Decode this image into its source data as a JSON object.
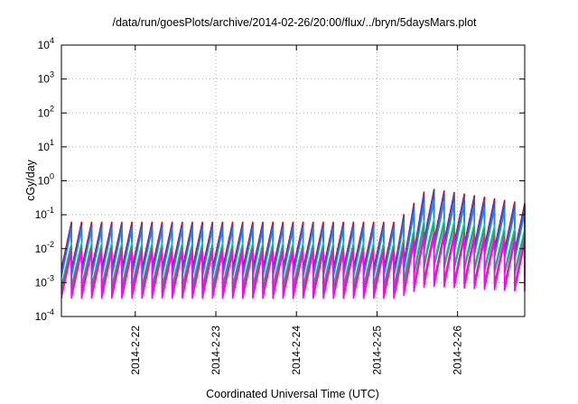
{
  "chart_data": {
    "type": "line",
    "title": "/data/run/goesPlots/archive/2014-02-26/20:00/flux/../bryn/5daysMars.plot",
    "xlabel": "Coordinated Universal Time (UTC)",
    "ylabel": "cGy/day",
    "yscale": "log",
    "ylim": [
      0.0001,
      10000
    ],
    "xlim": [
      "2014-02-21 02:00",
      "2014-02-26 20:00"
    ],
    "grid": true,
    "x_ticks": [
      {
        "label": "2014-2-22",
        "value": "2014-02-22 00:00"
      },
      {
        "label": "2014-2-23",
        "value": "2014-02-23 00:00"
      },
      {
        "label": "2014-2-24",
        "value": "2014-02-24 00:00"
      },
      {
        "label": "2014-2-25",
        "value": "2014-02-25 00:00"
      },
      {
        "label": "2014-2-26",
        "value": "2014-02-26 00:00"
      }
    ],
    "y_ticks": [
      {
        "base": "10",
        "exp": "-4",
        "value": 0.0001
      },
      {
        "base": "10",
        "exp": "-3",
        "value": 0.001
      },
      {
        "base": "10",
        "exp": "-2",
        "value": 0.01
      },
      {
        "base": "10",
        "exp": "-1",
        "value": 0.1
      },
      {
        "base": "10",
        "exp": "0",
        "value": 1
      },
      {
        "base": "10",
        "exp": "1",
        "value": 10
      },
      {
        "base": "10",
        "exp": "2",
        "value": 100
      },
      {
        "base": "10",
        "exp": "3",
        "value": 1000
      },
      {
        "base": "10",
        "exp": "4",
        "value": 10000
      }
    ],
    "sawtooth": {
      "period_hours": 3,
      "step_hours": 0.5,
      "step_time": "2014-02-25 06:00",
      "rise_end_time": "2014-02-25 15:00",
      "ramp_end_factor": 0.55
    },
    "series": [
      {
        "color": "#e00000",
        "peak_before": 0.06,
        "peak_after": 0.6,
        "trough_before": 0.0025,
        "trough_after": 0.018
      },
      {
        "color": "#3050e0",
        "peak_before": 0.05,
        "peak_after": 0.5,
        "trough_before": 0.002,
        "trough_after": 0.015
      },
      {
        "color": "#1e7fff",
        "peak_before": 0.04,
        "peak_after": 0.28,
        "trough_before": 0.0015,
        "trough_after": 0.01
      },
      {
        "color": "#00c8c8",
        "peak_before": 0.015,
        "peak_after": 0.08,
        "trough_before": 0.0008,
        "trough_after": 0.004
      },
      {
        "color": "#2aa84a",
        "peak_before": 0.012,
        "peak_after": 0.06,
        "trough_before": 0.0007,
        "trough_after": 0.003
      },
      {
        "color": "#b04090",
        "peak_before": 0.01,
        "peak_after": 0.035,
        "trough_before": 0.0005,
        "trough_after": 0.0012
      },
      {
        "color": "#ff00ff",
        "peak_before": 0.008,
        "peak_after": 0.025,
        "trough_before": 0.00035,
        "trough_after": 0.0008
      }
    ]
  }
}
